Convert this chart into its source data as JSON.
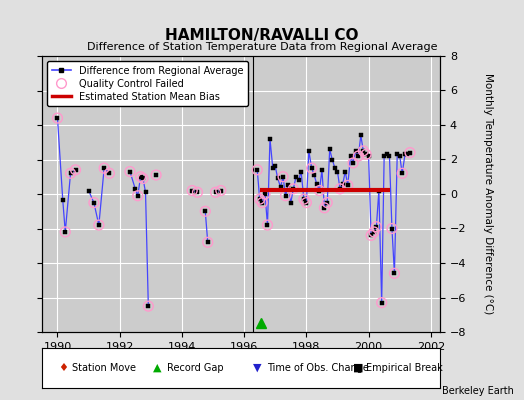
{
  "title": "HAMILTON/RAVALLI CO",
  "subtitle": "Difference of Station Temperature Data from Regional Average",
  "ylabel": "Monthly Temperature Anomaly Difference (°C)",
  "xlim": [
    1989.5,
    2002.3
  ],
  "ylim": [
    -8,
    8
  ],
  "yticks": [
    -8,
    -6,
    -4,
    -2,
    0,
    2,
    4,
    6,
    8
  ],
  "xticks": [
    1990,
    1992,
    1994,
    1996,
    1998,
    2000,
    2002
  ],
  "background_color": "#e0e0e0",
  "plot_bg_color": "#cccccc",
  "grid_color": "#ffffff",
  "attribution": "Berkeley Earth",
  "line_color": "#4444ff",
  "bias_color": "#cc0000",
  "bias_x_start": 1996.5,
  "bias_x_end": 2000.7,
  "bias_y": 0.25,
  "vertical_line_x": 1996.3,
  "record_gap_x": 1996.55,
  "record_gap_y": -7.5,
  "segments": [
    [
      [
        1990.0,
        4.4
      ],
      [
        1990.17,
        -0.35
      ],
      [
        1990.25,
        -2.2
      ],
      [
        1990.42,
        1.2
      ],
      [
        1990.58,
        1.4
      ]
    ],
    [
      [
        1991.0,
        0.2
      ],
      [
        1991.17,
        -0.5
      ],
      [
        1991.33,
        -1.8
      ],
      [
        1991.5,
        1.5
      ],
      [
        1991.67,
        1.2
      ]
    ],
    [
      [
        1992.33,
        1.3
      ],
      [
        1992.5,
        0.3
      ],
      [
        1992.58,
        -0.1
      ],
      [
        1992.67,
        1.0
      ],
      [
        1992.75,
        0.9
      ],
      [
        1992.83,
        0.1
      ],
      [
        1992.92,
        -6.5
      ]
    ],
    [
      [
        1993.17,
        1.1
      ]
    ],
    [
      [
        1994.33,
        0.2
      ],
      [
        1994.5,
        0.1
      ]
    ],
    [
      [
        1994.75,
        -1.0
      ],
      [
        1994.83,
        -2.8
      ]
    ],
    [
      [
        1995.08,
        0.1
      ],
      [
        1995.25,
        0.2
      ]
    ],
    [
      [
        1996.42,
        1.4
      ],
      [
        1996.5,
        -0.3
      ],
      [
        1996.58,
        -0.5
      ],
      [
        1996.67,
        0.0
      ],
      [
        1996.75,
        -1.8
      ],
      [
        1996.83,
        3.2
      ],
      [
        1996.92,
        1.5
      ],
      [
        1997.0,
        1.6
      ],
      [
        1997.08,
        0.9
      ],
      [
        1997.17,
        0.4
      ],
      [
        1997.25,
        1.0
      ],
      [
        1997.33,
        -0.1
      ],
      [
        1997.42,
        0.5
      ],
      [
        1997.5,
        -0.5
      ],
      [
        1997.58,
        0.3
      ],
      [
        1997.67,
        1.0
      ],
      [
        1997.75,
        0.8
      ],
      [
        1997.83,
        1.3
      ],
      [
        1997.92,
        -0.3
      ],
      [
        1998.0,
        -0.5
      ],
      [
        1998.08,
        2.5
      ],
      [
        1998.17,
        1.5
      ],
      [
        1998.25,
        1.1
      ],
      [
        1998.33,
        0.6
      ],
      [
        1998.42,
        0.2
      ],
      [
        1998.5,
        1.4
      ],
      [
        1998.58,
        -0.8
      ],
      [
        1998.67,
        -0.5
      ],
      [
        1998.75,
        2.6
      ],
      [
        1998.83,
        2.0
      ],
      [
        1998.92,
        1.5
      ],
      [
        1999.0,
        1.3
      ],
      [
        1999.08,
        0.3
      ],
      [
        1999.17,
        0.6
      ],
      [
        1999.25,
        1.3
      ],
      [
        1999.33,
        0.5
      ],
      [
        1999.42,
        2.2
      ],
      [
        1999.5,
        1.8
      ],
      [
        1999.58,
        2.5
      ],
      [
        1999.67,
        2.2
      ],
      [
        1999.75,
        3.4
      ],
      [
        1999.83,
        2.5
      ],
      [
        1999.92,
        2.3
      ]
    ],
    [
      [
        2000.0,
        2.2
      ],
      [
        2000.08,
        -2.4
      ],
      [
        2000.17,
        -2.2
      ],
      [
        2000.25,
        -1.9
      ],
      [
        2000.33,
        0.2
      ],
      [
        2000.42,
        -6.3
      ],
      [
        2000.5,
        2.2
      ]
    ],
    [
      [
        2000.58,
        2.3
      ],
      [
        2000.67,
        2.2
      ],
      [
        2000.75,
        -2.0
      ],
      [
        2000.83,
        -4.6
      ],
      [
        2000.92,
        2.3
      ],
      [
        2001.0,
        2.2
      ],
      [
        2001.08,
        1.2
      ],
      [
        2001.17,
        2.3
      ],
      [
        2001.25,
        2.3
      ],
      [
        2001.33,
        2.4
      ]
    ]
  ],
  "qc_failed_points": [
    [
      1990.0,
      4.4
    ],
    [
      1990.25,
      -2.2
    ],
    [
      1990.42,
      1.2
    ],
    [
      1990.58,
      1.4
    ],
    [
      1991.17,
      -0.5
    ],
    [
      1991.33,
      -1.8
    ],
    [
      1991.5,
      1.5
    ],
    [
      1991.67,
      1.2
    ],
    [
      1992.33,
      1.3
    ],
    [
      1992.58,
      -0.1
    ],
    [
      1992.67,
      1.0
    ],
    [
      1992.75,
      0.9
    ],
    [
      1992.92,
      -6.5
    ],
    [
      1993.17,
      1.1
    ],
    [
      1994.33,
      0.2
    ],
    [
      1994.5,
      0.1
    ],
    [
      1994.75,
      -1.0
    ],
    [
      1994.83,
      -2.8
    ],
    [
      1995.08,
      0.1
    ],
    [
      1995.25,
      0.2
    ],
    [
      1996.42,
      1.4
    ],
    [
      1996.5,
      -0.3
    ],
    [
      1996.58,
      -0.5
    ],
    [
      1996.67,
      0.0
    ],
    [
      1996.75,
      -1.8
    ],
    [
      1997.25,
      1.0
    ],
    [
      1997.33,
      -0.1
    ],
    [
      1997.58,
      0.3
    ],
    [
      1997.92,
      -0.3
    ],
    [
      1998.0,
      -0.5
    ],
    [
      1998.17,
      1.5
    ],
    [
      1998.42,
      0.2
    ],
    [
      1998.58,
      -0.8
    ],
    [
      1998.67,
      -0.5
    ],
    [
      1999.08,
      0.3
    ],
    [
      1999.33,
      0.5
    ],
    [
      1999.5,
      1.8
    ],
    [
      1999.67,
      2.2
    ],
    [
      1999.83,
      2.5
    ],
    [
      1999.92,
      2.3
    ],
    [
      2000.08,
      -2.4
    ],
    [
      2000.17,
      -2.2
    ],
    [
      2000.25,
      -1.9
    ],
    [
      2000.42,
      -6.3
    ],
    [
      2000.75,
      -2.0
    ],
    [
      2000.83,
      -4.6
    ],
    [
      2001.08,
      1.2
    ],
    [
      2001.33,
      2.4
    ]
  ]
}
